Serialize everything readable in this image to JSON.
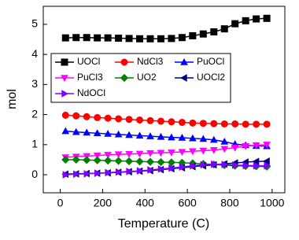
{
  "chart_data": {
    "type": "line",
    "x_label": "Temperature (C)",
    "y_label": "mol",
    "x": [
      25,
      75,
      125,
      175,
      225,
      275,
      325,
      375,
      425,
      475,
      525,
      575,
      625,
      675,
      725,
      775,
      825,
      875,
      925,
      975
    ],
    "series": [
      {
        "name": "UOCl",
        "color": "#000000",
        "marker": "square",
        "values": [
          4.55,
          4.56,
          4.56,
          4.55,
          4.55,
          4.54,
          4.53,
          4.52,
          4.52,
          4.52,
          4.53,
          4.56,
          4.62,
          4.68,
          4.75,
          4.85,
          5.02,
          5.12,
          5.18,
          5.2
        ]
      },
      {
        "name": "NdCl3",
        "color": "#ff0000",
        "marker": "circle",
        "values": [
          1.98,
          1.96,
          1.93,
          1.9,
          1.88,
          1.86,
          1.84,
          1.82,
          1.8,
          1.78,
          1.76,
          1.74,
          1.72,
          1.71,
          1.7,
          1.69,
          1.69,
          1.68,
          1.68,
          1.68
        ]
      },
      {
        "name": "PuOCl",
        "color": "#0000ff",
        "marker": "triangle-up",
        "values": [
          1.45,
          1.42,
          1.4,
          1.38,
          1.36,
          1.34,
          1.32,
          1.3,
          1.28,
          1.26,
          1.24,
          1.23,
          1.21,
          1.19,
          1.16,
          1.1,
          1.02,
          0.98,
          0.96,
          0.95
        ]
      },
      {
        "name": "PuCl3",
        "color": "#ff00ff",
        "marker": "triangle-down",
        "values": [
          0.58,
          0.6,
          0.62,
          0.64,
          0.66,
          0.68,
          0.69,
          0.7,
          0.72,
          0.73,
          0.74,
          0.76,
          0.78,
          0.8,
          0.82,
          0.86,
          0.9,
          0.95,
          0.98,
          1.0
        ]
      },
      {
        "name": "UO2",
        "color": "#008000",
        "marker": "diamond",
        "values": [
          0.5,
          0.5,
          0.49,
          0.48,
          0.47,
          0.46,
          0.45,
          0.44,
          0.43,
          0.42,
          0.41,
          0.4,
          0.38,
          0.36,
          0.34,
          0.32,
          0.3,
          0.29,
          0.28,
          0.27
        ]
      },
      {
        "name": "UOCl2",
        "color": "#000080",
        "marker": "triangle-left",
        "values": [
          0.02,
          0.03,
          0.04,
          0.05,
          0.06,
          0.08,
          0.1,
          0.12,
          0.14,
          0.17,
          0.2,
          0.23,
          0.27,
          0.3,
          0.33,
          0.36,
          0.39,
          0.42,
          0.44,
          0.45
        ]
      },
      {
        "name": "NdOCl",
        "color": "#8000ff",
        "marker": "triangle-right",
        "values": [
          0.0,
          0.02,
          0.03,
          0.05,
          0.07,
          0.09,
          0.11,
          0.13,
          0.16,
          0.19,
          0.22,
          0.26,
          0.3,
          0.33,
          0.35,
          0.34,
          0.32,
          0.31,
          0.3,
          0.3
        ]
      }
    ],
    "xlim": [
      -80,
      1060
    ],
    "xticks": [
      0,
      200,
      400,
      600,
      800,
      1000
    ],
    "ylim": [
      -0.6,
      5.6
    ],
    "yticks": [
      0,
      1,
      2,
      3,
      4,
      5
    ],
    "grid": false,
    "legend": "upper left"
  }
}
